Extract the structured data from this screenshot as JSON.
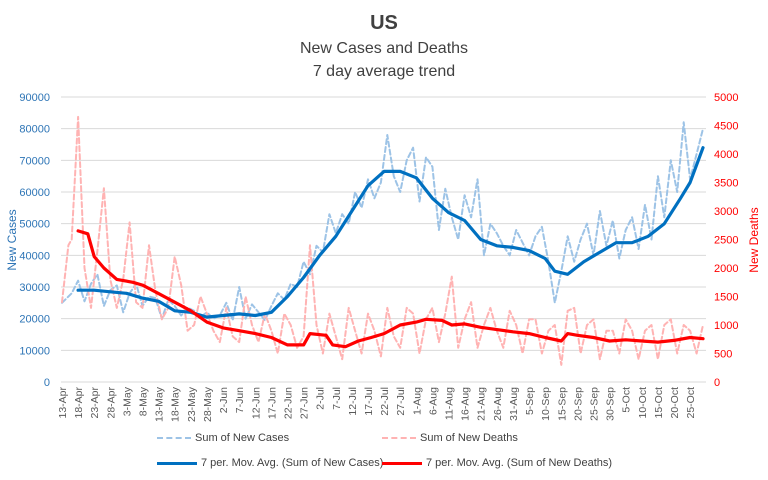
{
  "chart_data": {
    "type": "line",
    "title": "US",
    "subtitle": [
      "New Cases and Deaths",
      "7 day average trend"
    ],
    "xlabel": "",
    "ylabel": "New Cases",
    "y2label": "New Deaths",
    "ylim": [
      0,
      90000
    ],
    "y2lim": [
      0,
      5000
    ],
    "yticks": [
      0,
      10000,
      20000,
      30000,
      40000,
      50000,
      60000,
      70000,
      80000,
      90000
    ],
    "y2ticks": [
      0,
      500,
      1000,
      1500,
      2000,
      2500,
      3000,
      3500,
      4000,
      4500,
      5000
    ],
    "grid": true,
    "legend_position": "bottom",
    "x_start": "13-Apr",
    "x_days": 199,
    "x_tick_labels": [
      "13-Apr",
      "18-Apr",
      "23-Apr",
      "28-Apr",
      "3-May",
      "8-May",
      "13-May",
      "18-May",
      "23-May",
      "28-May",
      "2-Jun",
      "7-Jun",
      "12-Jun",
      "17-Jun",
      "22-Jun",
      "27-Jun",
      "2-Jul",
      "7-Jul",
      "12-Jul",
      "17-Jul",
      "22-Jul",
      "27-Jul",
      "1-Aug",
      "6-Aug",
      "11-Aug",
      "16-Aug",
      "21-Aug",
      "26-Aug",
      "31-Aug",
      "5-Sep",
      "10-Sep",
      "15-Sep",
      "20-Sep",
      "25-Sep",
      "30-Sep",
      "5-Oct",
      "10-Oct",
      "15-Oct",
      "20-Oct",
      "25-Oct"
    ],
    "series": [
      {
        "name": "Sum of New Cases",
        "axis": "left",
        "style": "dashed",
        "color": "#9dc3e6",
        "anchors": [
          [
            0,
            25000
          ],
          [
            3,
            28000
          ],
          [
            5,
            32000
          ],
          [
            7,
            25500
          ],
          [
            9,
            31000
          ],
          [
            11,
            34000
          ],
          [
            13,
            24000
          ],
          [
            15,
            29000
          ],
          [
            17,
            30500
          ],
          [
            19,
            22000
          ],
          [
            21,
            28000
          ],
          [
            23,
            31000
          ],
          [
            25,
            24000
          ],
          [
            27,
            27000
          ],
          [
            29,
            26500
          ],
          [
            31,
            20000
          ],
          [
            33,
            26000
          ],
          [
            35,
            24000
          ],
          [
            37,
            21000
          ],
          [
            39,
            23500
          ],
          [
            41,
            22500
          ],
          [
            43,
            20500
          ],
          [
            45,
            22000
          ],
          [
            47,
            20000
          ],
          [
            49,
            21000
          ],
          [
            51,
            25000
          ],
          [
            53,
            19500
          ],
          [
            55,
            30000
          ],
          [
            57,
            20000
          ],
          [
            59,
            24500
          ],
          [
            61,
            22000
          ],
          [
            63,
            19500
          ],
          [
            65,
            24000
          ],
          [
            67,
            28000
          ],
          [
            69,
            26000
          ],
          [
            71,
            31000
          ],
          [
            73,
            30000
          ],
          [
            75,
            38000
          ],
          [
            77,
            34000
          ],
          [
            79,
            43000
          ],
          [
            81,
            41000
          ],
          [
            83,
            53000
          ],
          [
            85,
            47000
          ],
          [
            87,
            53000
          ],
          [
            89,
            50000
          ],
          [
            91,
            60000
          ],
          [
            93,
            55000
          ],
          [
            95,
            64000
          ],
          [
            97,
            58000
          ],
          [
            99,
            63000
          ],
          [
            101,
            78000
          ],
          [
            103,
            65000
          ],
          [
            105,
            60000
          ],
          [
            107,
            70000
          ],
          [
            109,
            74000
          ],
          [
            111,
            57000
          ],
          [
            113,
            71000
          ],
          [
            115,
            68000
          ],
          [
            117,
            48000
          ],
          [
            119,
            61000
          ],
          [
            121,
            52000
          ],
          [
            123,
            45000
          ],
          [
            125,
            59000
          ],
          [
            127,
            52000
          ],
          [
            129,
            64000
          ],
          [
            131,
            40000
          ],
          [
            133,
            50000
          ],
          [
            135,
            47000
          ],
          [
            137,
            43000
          ],
          [
            139,
            40000
          ],
          [
            141,
            48000
          ],
          [
            143,
            44000
          ],
          [
            145,
            40000
          ],
          [
            147,
            46000
          ],
          [
            149,
            49000
          ],
          [
            151,
            38000
          ],
          [
            153,
            25000
          ],
          [
            155,
            35000
          ],
          [
            157,
            46000
          ],
          [
            159,
            38000
          ],
          [
            161,
            45000
          ],
          [
            163,
            50000
          ],
          [
            165,
            40000
          ],
          [
            167,
            54000
          ],
          [
            169,
            43000
          ],
          [
            171,
            51000
          ],
          [
            173,
            39000
          ],
          [
            175,
            48000
          ],
          [
            177,
            52000
          ],
          [
            179,
            42000
          ],
          [
            181,
            56000
          ],
          [
            183,
            45000
          ],
          [
            185,
            65000
          ],
          [
            187,
            52000
          ],
          [
            189,
            70000
          ],
          [
            191,
            60000
          ],
          [
            193,
            82000
          ],
          [
            195,
            64000
          ],
          [
            197,
            72000
          ],
          [
            199,
            80000
          ]
        ]
      },
      {
        "name": "Sum of New Deaths",
        "axis": "right",
        "style": "dashed",
        "color": "#ffb3b3",
        "anchors": [
          [
            0,
            1400
          ],
          [
            2,
            2400
          ],
          [
            3,
            2500
          ],
          [
            5,
            4650
          ],
          [
            7,
            2000
          ],
          [
            9,
            1300
          ],
          [
            11,
            2300
          ],
          [
            13,
            3400
          ],
          [
            15,
            1800
          ],
          [
            17,
            1300
          ],
          [
            19,
            1800
          ],
          [
            21,
            2800
          ],
          [
            23,
            1400
          ],
          [
            25,
            1300
          ],
          [
            27,
            2400
          ],
          [
            29,
            1600
          ],
          [
            31,
            1100
          ],
          [
            33,
            1300
          ],
          [
            35,
            2200
          ],
          [
            37,
            1700
          ],
          [
            39,
            900
          ],
          [
            41,
            1000
          ],
          [
            43,
            1500
          ],
          [
            45,
            1200
          ],
          [
            47,
            900
          ],
          [
            49,
            700
          ],
          [
            51,
            1300
          ],
          [
            53,
            800
          ],
          [
            55,
            700
          ],
          [
            57,
            1500
          ],
          [
            59,
            1000
          ],
          [
            61,
            700
          ],
          [
            63,
            1200
          ],
          [
            65,
            900
          ],
          [
            67,
            500
          ],
          [
            69,
            1200
          ],
          [
            71,
            1000
          ],
          [
            73,
            600
          ],
          [
            75,
            800
          ],
          [
            77,
            2400
          ],
          [
            79,
            1000
          ],
          [
            81,
            500
          ],
          [
            83,
            1200
          ],
          [
            85,
            800
          ],
          [
            87,
            400
          ],
          [
            89,
            1300
          ],
          [
            91,
            900
          ],
          [
            93,
            500
          ],
          [
            95,
            1200
          ],
          [
            97,
            900
          ],
          [
            99,
            450
          ],
          [
            101,
            1300
          ],
          [
            103,
            800
          ],
          [
            105,
            600
          ],
          [
            107,
            1300
          ],
          [
            109,
            1200
          ],
          [
            111,
            500
          ],
          [
            113,
            1100
          ],
          [
            115,
            1300
          ],
          [
            117,
            700
          ],
          [
            119,
            1200
          ],
          [
            121,
            1850
          ],
          [
            123,
            600
          ],
          [
            125,
            1100
          ],
          [
            127,
            1400
          ],
          [
            129,
            600
          ],
          [
            131,
            1000
          ],
          [
            133,
            1300
          ],
          [
            135,
            900
          ],
          [
            137,
            600
          ],
          [
            139,
            1250
          ],
          [
            141,
            1000
          ],
          [
            143,
            500
          ],
          [
            145,
            1100
          ],
          [
            147,
            1100
          ],
          [
            149,
            500
          ],
          [
            151,
            900
          ],
          [
            153,
            1000
          ],
          [
            155,
            300
          ],
          [
            157,
            1250
          ],
          [
            159,
            1300
          ],
          [
            161,
            500
          ],
          [
            163,
            1000
          ],
          [
            165,
            1100
          ],
          [
            167,
            400
          ],
          [
            169,
            900
          ],
          [
            171,
            900
          ],
          [
            173,
            500
          ],
          [
            175,
            1100
          ],
          [
            177,
            900
          ],
          [
            179,
            400
          ],
          [
            181,
            900
          ],
          [
            183,
            1000
          ],
          [
            185,
            400
          ],
          [
            187,
            1000
          ],
          [
            189,
            1100
          ],
          [
            191,
            500
          ],
          [
            193,
            1000
          ],
          [
            195,
            900
          ],
          [
            197,
            500
          ],
          [
            199,
            1000
          ]
        ]
      },
      {
        "name": "7 per. Mov. Avg. (Sum of New Cases)",
        "axis": "left",
        "style": "solid",
        "color": "#0070c0",
        "anchors": [
          [
            5,
            29000
          ],
          [
            10,
            29000
          ],
          [
            15,
            28500
          ],
          [
            20,
            28000
          ],
          [
            25,
            26500
          ],
          [
            30,
            25500
          ],
          [
            35,
            22500
          ],
          [
            40,
            22000
          ],
          [
            45,
            20500
          ],
          [
            50,
            21000
          ],
          [
            55,
            21500
          ],
          [
            60,
            21000
          ],
          [
            65,
            22000
          ],
          [
            70,
            27000
          ],
          [
            75,
            33000
          ],
          [
            80,
            40000
          ],
          [
            85,
            46000
          ],
          [
            90,
            54000
          ],
          [
            95,
            62000
          ],
          [
            100,
            66500
          ],
          [
            105,
            66500
          ],
          [
            110,
            64500
          ],
          [
            115,
            58000
          ],
          [
            120,
            53500
          ],
          [
            125,
            51000
          ],
          [
            130,
            45000
          ],
          [
            135,
            43000
          ],
          [
            140,
            42500
          ],
          [
            145,
            41500
          ],
          [
            150,
            39000
          ],
          [
            153,
            35000
          ],
          [
            157,
            34000
          ],
          [
            162,
            38000
          ],
          [
            167,
            41000
          ],
          [
            172,
            44000
          ],
          [
            177,
            44000
          ],
          [
            182,
            46000
          ],
          [
            187,
            50000
          ],
          [
            192,
            58000
          ],
          [
            195,
            63000
          ],
          [
            199,
            74000
          ]
        ]
      },
      {
        "name": "7 per. Mov. Avg. (Sum of New Deaths)",
        "axis": "right",
        "style": "solid",
        "color": "#ff0000",
        "anchors": [
          [
            5,
            2650
          ],
          [
            8,
            2600
          ],
          [
            10,
            2200
          ],
          [
            13,
            2000
          ],
          [
            17,
            1800
          ],
          [
            22,
            1750
          ],
          [
            25,
            1700
          ],
          [
            30,
            1550
          ],
          [
            35,
            1400
          ],
          [
            40,
            1250
          ],
          [
            45,
            1050
          ],
          [
            50,
            950
          ],
          [
            55,
            900
          ],
          [
            60,
            850
          ],
          [
            65,
            780
          ],
          [
            70,
            650
          ],
          [
            75,
            650
          ],
          [
            77,
            850
          ],
          [
            82,
            820
          ],
          [
            84,
            650
          ],
          [
            88,
            620
          ],
          [
            92,
            720
          ],
          [
            96,
            780
          ],
          [
            100,
            850
          ],
          [
            105,
            1000
          ],
          [
            110,
            1050
          ],
          [
            113,
            1100
          ],
          [
            118,
            1080
          ],
          [
            121,
            1000
          ],
          [
            125,
            1020
          ],
          [
            130,
            960
          ],
          [
            135,
            920
          ],
          [
            140,
            880
          ],
          [
            145,
            850
          ],
          [
            150,
            780
          ],
          [
            155,
            720
          ],
          [
            157,
            850
          ],
          [
            160,
            820
          ],
          [
            165,
            780
          ],
          [
            170,
            720
          ],
          [
            175,
            740
          ],
          [
            180,
            720
          ],
          [
            185,
            700
          ],
          [
            190,
            730
          ],
          [
            195,
            780
          ],
          [
            199,
            760
          ]
        ]
      }
    ]
  }
}
